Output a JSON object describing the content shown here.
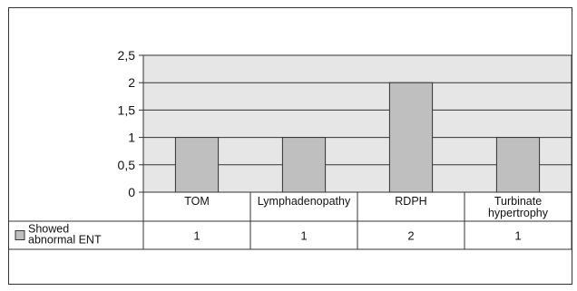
{
  "chart_data": {
    "type": "bar",
    "categories": [
      "TOM",
      "Lymphadenopathy",
      "RDPH",
      "Turbinate hypertrophy"
    ],
    "category_lines": [
      [
        "TOM"
      ],
      [
        "Lymphadenopathy"
      ],
      [
        "RDPH"
      ],
      [
        "Turbinate",
        "hypertrophy"
      ]
    ],
    "series": [
      {
        "name": "Showed abnormal ENT",
        "name_lines": [
          "Showed",
          "abnormal ENT"
        ],
        "values": [
          1,
          1,
          2,
          1
        ],
        "color": "#bfbfbf"
      }
    ],
    "ylim": [
      0,
      2.5
    ],
    "yticks": [
      "0",
      "0,5",
      "1",
      "1,5",
      "2",
      "2,5"
    ],
    "xlabel": "",
    "ylabel": "",
    "grid": true,
    "plot_background": "#e6e6e6",
    "legend": "data-table",
    "data_table": true
  }
}
